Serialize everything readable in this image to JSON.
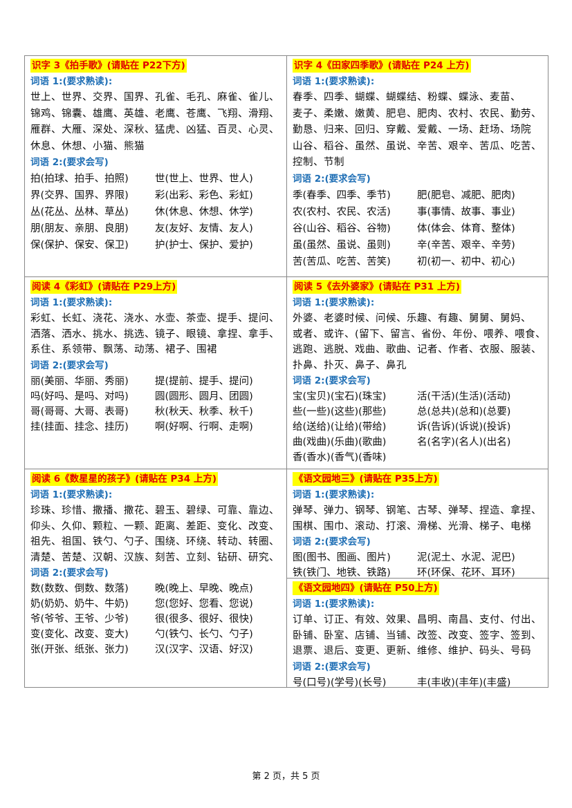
{
  "cells": [
    {
      "title": "识字 3《拍手歌》(请贴在 P22下方)",
      "label1": "词语 1:(要求熟读):",
      "words": [
        "世上、世界、交界、国界、孔雀、毛孔、麻雀、雀儿、",
        "锦鸡、锦囊、雄鹰、英雄、老鹰、苍鹰、飞翔、滑翔、",
        "雁群、大雁、深处、深秋、猛虎、凶猛、百灵、心灵、",
        "休息、休想、小猫、熊猫"
      ],
      "label2": "词语 2:(要求会写)",
      "pairs": [
        [
          "拍(拍球、拍手、拍照)",
          "世(世上、世界、世人)"
        ],
        [
          "界(交界、国界、界限)",
          "彩(出彩、彩色、彩虹)"
        ],
        [
          "丛(花丛、丛林、草丛)",
          "休(休息、休想、休学)"
        ],
        [
          "朋(朋友、亲朋、良朋)",
          "友(友好、友情、友人)"
        ],
        [
          "保(保护、保安、保卫)",
          "护(护士、保护、爱护)"
        ]
      ]
    },
    {
      "title": "识字 4《田家四季歌》(请贴在 P24 上方)",
      "label1": "词语 1:(要求熟读):",
      "words": [
        "春季、四季、蝴蝶、蝴蝶结、粉蝶、蝶泳、麦苗、",
        "麦子、柔嫩、嫩黄、肥皂、肥肉、农村、农民、勤劳、",
        "勤恳、归来、回归、穿戴、爱戴、一场、赶场、场院",
        "山谷、稻谷、虽然、虽说、辛苦、艰辛、苦瓜、吃苦、",
        "控制、节制"
      ],
      "label2": "词语 2:(要求会写)",
      "pairs": [
        [
          "季(春季、四季、季节)",
          "肥(肥皂、减肥、肥肉)"
        ],
        [
          "农(农村、农民、农活)",
          "事(事情、故事、事业)"
        ],
        [
          "谷(山谷、稻谷、谷物)",
          "体(体会、体育、整体)"
        ],
        [
          "虽(虽然、虽说、虽则)",
          "辛(辛苦、艰辛、辛劳)"
        ],
        [
          "苦(苦瓜、吃苦、苦笑)",
          "初(初一、初中、初心)"
        ]
      ]
    },
    {
      "title": "阅读 4《彩虹》(请贴在 P29上方)",
      "label1": "词语 1:(要求熟读):",
      "words": [
        "彩虹、长虹、浇花、浇水、水壶、茶壶、提手、提问、",
        "洒落、洒水、挑水、挑选、镜子、眼镜、拿捏、拿手、",
        "系住、系领带、飘荡、动荡、裙子、围裙"
      ],
      "label2": "词语 2:(要求会写)",
      "pairs": [
        [
          "丽(美丽、华丽、秀丽)",
          "提(提前、提手、提问)"
        ],
        [
          "吗(好吗、是吗、对吗)",
          "圆(圆形、圆月、团圆)"
        ],
        [
          "哥(哥哥、大哥、表哥)",
          "秋(秋天、秋季、秋千)"
        ],
        [
          "挂(挂面、挂念、挂历)",
          "啊(好啊、行啊、走啊)"
        ]
      ]
    },
    {
      "title": "阅读 5《去外婆家》(请贴在 P31 上方)",
      "label1": "词语 1:(要求熟读):",
      "words": [
        "外婆、老婆时候、问候、乐趣、有趣、舅舅、舅妈、",
        "或者、或许、(留下、留言、省份、年份、喂养、喂食、",
        "逃跑、逃脱、戏曲、歌曲、记者、作者、衣服、服装、",
        "扑鼻、扑灭、鼻子、鼻孔"
      ],
      "label2": "词语 2:(要求会写)",
      "pairs": [
        [
          "宝(宝贝)(宝石)(珠宝)",
          "活(干活)(生活)(活动)"
        ],
        [
          "些(一些)(这些)(那些)",
          "总(总共)(总和)(总要)"
        ],
        [
          "给(送给)(让给)(带给)",
          "诉(告诉)(诉说)(投诉)"
        ],
        [
          "曲(戏曲)(乐曲)(歌曲)",
          "名(名字)(名人)(出名)"
        ],
        [
          "香(香水)(香气)(香味)",
          ""
        ]
      ]
    },
    {
      "title": "阅读 6《数星星的孩子》(请贴在 P34 上方)",
      "label1": "词语 1:(要求熟读):",
      "words": [
        "珍珠、珍惜、撒播、撒花、碧玉、碧绿、可靠、靠边、",
        "仰头、久仰、颗粒、一颗、距离、差距、变化、改变、",
        "祖先、祖国、铁勺、勺子、围绕、环绕、转动、转圈、",
        "清楚、苦楚、汉朝、汉族、刻苦、立刻、钻研、研究、"
      ],
      "label2": "词语 2:(要求会写)",
      "pairs": [
        [
          "数(数数、倒数、数落)",
          "晚(晚上、早晚、晚点)"
        ],
        [
          "奶(奶奶、奶牛、牛奶)",
          "您(您好、您看、您说)"
        ],
        [
          "爷(爷爷、王爷、少爷)",
          "很(很多、很好、很快)"
        ],
        [
          "变(变化、改变、变大)",
          "勺(铁勺、长勺、勺子)"
        ],
        [
          "张(开张、纸张、张力)",
          "汉(汉字、汉语、好汉)"
        ]
      ]
    },
    {
      "title": "《语文园地三》(请贴在 P35上方)",
      "label1": "词语 1:(要求熟读):",
      "words": [
        "弹琴、弹力、钢琴、钢笔、古琴、弹琴、捏造、拿捏、",
        "围棋、围巾、滚动、打滚、滑梯、光滑、梯子、电梯"
      ],
      "label2": "词语 2:(要求会写)",
      "pairs": [
        [
          "图(图书、图画、图片)",
          "泥(泥土、水泥、泥巴)"
        ],
        [
          "铁(铁门、地铁、铁路)",
          "环(环保、花环、耳环)"
        ]
      ]
    },
    {
      "title": "《语文园地四》(请贴在 P50上方)",
      "label1": "词语 1:(要求熟读):",
      "words": [
        "订单、订正、有效、效果、昌明、南昌、支付、付出、",
        "卧铺、卧室、店铺、当铺、改签、改变、签字、签到、",
        "退票、退后、变更、更新、维修、维护、码头、号码"
      ],
      "label2": "词语 2:(要求会写)",
      "pairs": [
        [
          "号(口号)(学号)(长号)",
          "丰(丰收)(丰年)(丰盛)"
        ]
      ]
    }
  ],
  "footer": "第 2 页，共 5 页"
}
